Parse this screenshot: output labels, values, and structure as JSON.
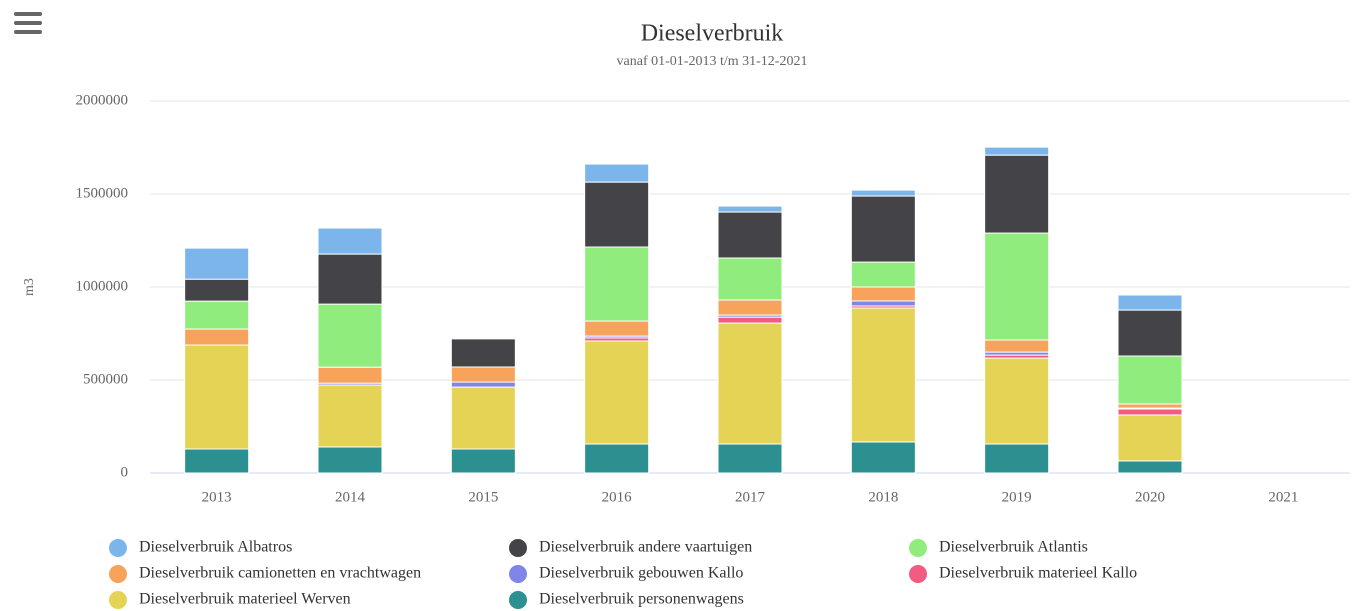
{
  "chart_data": {
    "type": "stacked_bar",
    "title": "Dieselverbruik",
    "subtitle": "vanaf 01-01-2013 t/m 31-12-2021",
    "y_label": "m3",
    "categories": [
      "2013",
      "2014",
      "2015",
      "2016",
      "2017",
      "2018",
      "2019",
      "2020",
      "2021"
    ],
    "series": [
      {
        "name": "Dieselverbruik Albatros",
        "color": "#7cb5ec",
        "values": [
          167000,
          140000,
          0,
          97000,
          32000,
          32000,
          43000,
          81000,
          0
        ]
      },
      {
        "name": "Dieselverbruik andere vaartuigen",
        "color": "#434348",
        "values": [
          118000,
          269000,
          151000,
          349000,
          247000,
          355000,
          419000,
          247000,
          0
        ]
      },
      {
        "name": "Dieselverbruik Atlantis",
        "color": "#90ed7d",
        "values": [
          150000,
          339000,
          0,
          398000,
          226000,
          134000,
          575000,
          258000,
          0
        ]
      },
      {
        "name": "Dieselverbruik camionetten en vrachtwagen",
        "color": "#f7a35c",
        "values": [
          86000,
          86000,
          81000,
          81000,
          81000,
          75000,
          65000,
          22000,
          0
        ]
      },
      {
        "name": "Dieselverbruik gebouwen Kallo",
        "color": "#8085e9",
        "values": [
          0,
          10000,
          27000,
          10000,
          11000,
          27000,
          16000,
          5000,
          0
        ]
      },
      {
        "name": "Dieselverbruik materieel Kallo",
        "color": "#f15c80",
        "values": [
          0,
          0,
          0,
          16000,
          32000,
          11000,
          16000,
          32000,
          0
        ]
      },
      {
        "name": "Dieselverbruik materieel Werven",
        "color": "#e4d354",
        "values": [
          559000,
          333000,
          333000,
          554000,
          650000,
          720000,
          462000,
          247000,
          0
        ]
      },
      {
        "name": "Dieselverbruik personenwagens",
        "color": "#2b908f",
        "values": [
          129000,
          140000,
          129000,
          156000,
          156000,
          167000,
          156000,
          65000,
          0
        ]
      }
    ],
    "ylim": [
      0,
      2000000
    ],
    "yticks": [
      0,
      500000,
      1000000,
      1500000,
      2000000
    ],
    "grid": true
  }
}
